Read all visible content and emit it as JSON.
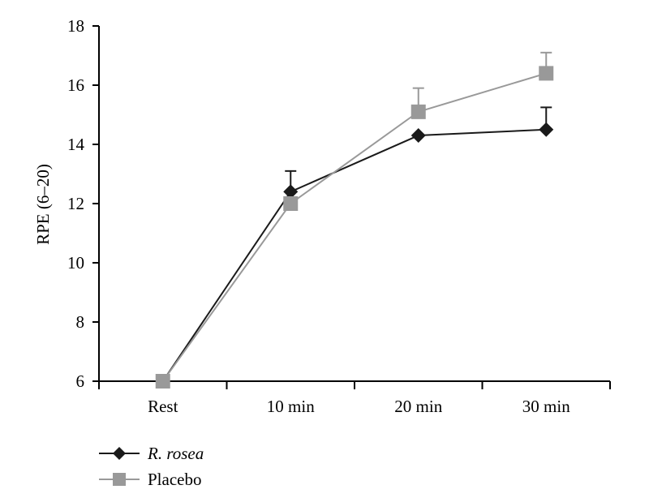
{
  "chart_data": {
    "type": "line",
    "title": "",
    "xlabel": "",
    "ylabel": "RPE (6–20)",
    "categories": [
      "Rest",
      "10 min",
      "20 min",
      "30 min"
    ],
    "ylim": [
      6,
      18
    ],
    "yticks": [
      "6",
      "8",
      "10",
      "12",
      "14",
      "16",
      "18"
    ],
    "series": [
      {
        "name": "R. rosea",
        "values": [
          6.0,
          12.4,
          14.3,
          14.5
        ],
        "errors": [
          0,
          0.7,
          0.0,
          0.75
        ],
        "color": "#1a1a1a",
        "marker": "diamond"
      },
      {
        "name": "Placebo",
        "values": [
          6.0,
          12.0,
          15.1,
          16.4
        ],
        "errors": [
          0,
          0.0,
          0.8,
          0.7
        ],
        "color": "#999999",
        "marker": "square"
      }
    ],
    "legend_position": "bottom-left"
  }
}
